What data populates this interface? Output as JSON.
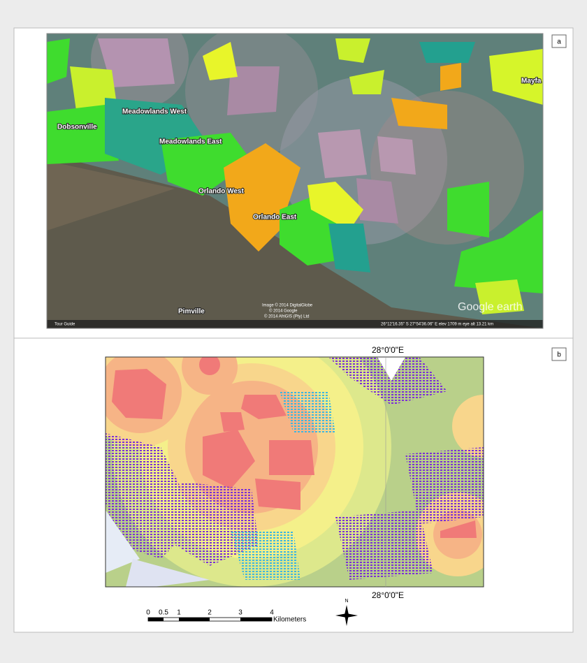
{
  "panel_a": {
    "label": "a",
    "places": [
      "Meadowlands West",
      "Dobsonville",
      "Meadowlands East",
      "Orlando West",
      "Orlando East",
      "Pimville",
      "Mayfa"
    ],
    "credits": [
      "Image © 2014 DigitalGlobe",
      "© 2014 Google",
      "© 2014 AfriGIS (Pty) Ltd"
    ],
    "tour_guide": "Tour Guide",
    "logo": "Google earth",
    "status": "26°12'16.35\" S   27°54'36.06\" E   elev 1709 m   eye alt 13.21 km"
  },
  "panel_b": {
    "label": "b",
    "meridian_top": "28°0'0\"E",
    "meridian_bottom": "28°0'0\"E",
    "scale_labels": [
      "0",
      "0.5",
      "1",
      "2",
      "3",
      "4"
    ],
    "scale_unit": "Kilometers",
    "north": "N"
  }
}
